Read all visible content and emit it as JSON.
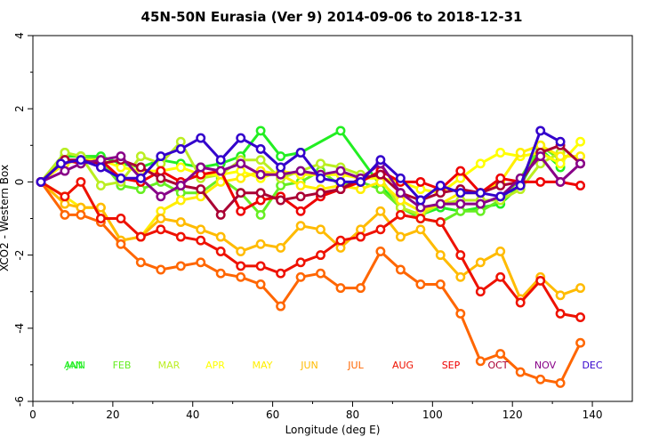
{
  "chart_data": {
    "type": "line",
    "title": "45N-50N Eurasia (Ver 9)   2014-09-06 to 2018-12-31",
    "xlabel": "Longitude (deg E)",
    "ylabel": "XCO2 - Western Box",
    "xlim": [
      0,
      150
    ],
    "ylim": [
      -6,
      4
    ],
    "xticks": [
      0,
      20,
      40,
      60,
      80,
      100,
      120,
      140
    ],
    "yticks": [
      -6,
      -4,
      -2,
      0,
      2,
      4
    ],
    "legend_labels": [
      "ANN",
      "JAN",
      "FEB",
      "MAR",
      "APR",
      "MAY",
      "JUN",
      "JUL",
      "AUG",
      "SEP",
      "OCT",
      "NOV",
      "DEC"
    ],
    "series": [
      {
        "name": "JAN",
        "color": "#22ee22",
        "x": [
          2,
          8,
          12,
          17,
          22,
          27,
          32,
          37,
          42,
          47,
          52,
          57,
          62,
          67,
          77,
          87,
          92,
          97,
          102,
          107,
          112,
          117,
          122,
          127,
          132
        ],
        "y": [
          0,
          0.7,
          0.7,
          0.7,
          0.5,
          0.4,
          0.6,
          0.5,
          0.4,
          0.5,
          0.7,
          1.4,
          0.7,
          0.8,
          1.4,
          -0.1,
          -0.7,
          -0.9,
          -0.7,
          -0.8,
          -0.7,
          -0.6,
          -0.1,
          0.9,
          0.4
        ]
      },
      {
        "name": "FEB",
        "color": "#66ee22",
        "x": [
          2,
          8,
          12,
          17,
          22,
          27,
          32,
          37,
          42,
          47,
          52,
          57,
          62,
          67,
          72,
          77,
          82,
          87,
          92,
          97,
          102,
          107,
          112,
          117,
          122,
          127,
          132
        ],
        "y": [
          0,
          0.8,
          0.7,
          0.6,
          -0.1,
          -0.2,
          0.0,
          -0.3,
          -0.3,
          0.1,
          -0.3,
          -0.9,
          -0.1,
          0.0,
          0.3,
          -0.1,
          0.0,
          -0.2,
          -0.7,
          -1.0,
          -1.1,
          -0.8,
          -0.8,
          -0.5,
          0.1,
          1.0,
          0.6
        ]
      },
      {
        "name": "MAR",
        "color": "#bbee22",
        "x": [
          2,
          8,
          12,
          17,
          22,
          27,
          32,
          37,
          42,
          47,
          52,
          57,
          62,
          67,
          72,
          77,
          82,
          87,
          92,
          97,
          102,
          107,
          112,
          117,
          122,
          127,
          132
        ],
        "y": [
          0,
          0.8,
          0.7,
          -0.1,
          0.0,
          0.7,
          0.5,
          1.1,
          0.1,
          0.2,
          0.6,
          0.6,
          0.1,
          0.3,
          0.5,
          0.4,
          0.2,
          0.1,
          -0.7,
          -0.9,
          -0.6,
          -0.5,
          -0.5,
          -0.5,
          -0.2,
          0.5,
          0.8
        ]
      },
      {
        "name": "APR",
        "color": "#ffff00",
        "x": [
          2,
          8,
          12,
          17,
          22,
          27,
          32,
          37,
          42,
          47,
          52,
          57,
          62,
          67,
          72,
          77,
          82,
          87,
          92,
          97,
          102,
          107,
          112,
          117,
          122,
          127,
          132,
          137
        ],
        "y": [
          0,
          0.5,
          0.6,
          0.6,
          0.4,
          0.3,
          0.3,
          0.4,
          0.2,
          0.2,
          0.3,
          0.1,
          0.3,
          0.2,
          0.2,
          0.2,
          0.1,
          0.1,
          0.0,
          -0.2,
          -0.3,
          0.1,
          0.5,
          0.8,
          0.7,
          0.8,
          0.5,
          1.1
        ]
      },
      {
        "name": "MAY",
        "color": "#ffee00",
        "x": [
          2,
          8,
          12,
          17,
          22,
          27,
          32,
          37,
          42,
          47,
          52,
          57,
          62,
          67,
          72,
          77,
          82,
          87,
          92,
          97,
          102,
          107,
          112,
          117,
          122,
          127,
          132,
          137
        ],
        "y": [
          0,
          -0.4,
          -0.7,
          -0.7,
          -1.6,
          -1.5,
          -0.8,
          -0.5,
          -0.4,
          0.0,
          0.1,
          0.3,
          0.2,
          -0.1,
          -0.2,
          -0.1,
          -0.2,
          0.0,
          -0.5,
          -0.8,
          -0.6,
          -0.3,
          -0.3,
          0.0,
          0.8,
          1.0,
          0.7,
          0.7
        ]
      },
      {
        "name": "JUN",
        "color": "#ffbb00",
        "x": [
          2,
          8,
          12,
          17,
          22,
          27,
          32,
          37,
          42,
          47,
          52,
          57,
          62,
          67,
          72,
          77,
          82,
          87,
          92,
          97,
          102,
          107,
          112,
          117,
          122,
          127,
          132,
          137
        ],
        "y": [
          0,
          -0.6,
          -0.7,
          -0.7,
          -1.6,
          -1.5,
          -1.0,
          -1.1,
          -1.3,
          -1.5,
          -1.9,
          -1.7,
          -1.8,
          -1.2,
          -1.3,
          -1.8,
          -1.3,
          -0.8,
          -1.5,
          -1.3,
          -2.0,
          -2.6,
          -2.2,
          -1.9,
          -3.2,
          -2.6,
          -3.1,
          -2.9
        ]
      },
      {
        "name": "JUL",
        "color": "#ff6600",
        "x": [
          2,
          8,
          12,
          17,
          22,
          27,
          32,
          37,
          42,
          47,
          52,
          57,
          62,
          67,
          72,
          77,
          82,
          87,
          92,
          97,
          102,
          107,
          112,
          117,
          122,
          127,
          132,
          137
        ],
        "y": [
          0,
          -0.9,
          -0.9,
          -1.1,
          -1.7,
          -2.2,
          -2.4,
          -2.3,
          -2.2,
          -2.5,
          -2.6,
          -2.8,
          -3.4,
          -2.6,
          -2.5,
          -2.9,
          -2.9,
          -1.9,
          -2.4,
          -2.8,
          -2.8,
          -3.6,
          -4.9,
          -4.7,
          -5.2,
          -5.4,
          -5.5,
          -4.4
        ]
      },
      {
        "name": "AUG",
        "color": "#ee1100",
        "x": [
          2,
          8,
          12,
          17,
          22,
          27,
          32,
          37,
          42,
          47,
          52,
          57,
          62,
          67,
          72,
          77,
          82,
          87,
          92,
          97,
          102,
          107,
          112,
          117,
          122,
          127,
          132,
          137
        ],
        "y": [
          0,
          -0.4,
          0.0,
          -1.0,
          -1.0,
          -1.5,
          -1.3,
          -1.5,
          -1.6,
          -1.9,
          -2.3,
          -2.3,
          -2.5,
          -2.2,
          -2.0,
          -1.6,
          -1.5,
          -1.3,
          -0.9,
          -1.0,
          -1.1,
          -2.0,
          -3.0,
          -2.6,
          -3.3,
          -2.7,
          -3.6,
          -3.7
        ]
      },
      {
        "name": "SEP",
        "color": "#ee0000",
        "x": [
          2,
          8,
          12,
          17,
          22,
          27,
          32,
          37,
          42,
          47,
          52,
          57,
          62,
          67,
          72,
          77,
          82,
          87,
          92,
          97,
          102,
          107,
          112,
          117,
          122,
          127,
          132,
          137
        ],
        "y": [
          0,
          0.6,
          0.5,
          0.6,
          0.1,
          0.0,
          0.3,
          0.0,
          0.2,
          0.3,
          -0.8,
          -0.5,
          -0.4,
          -0.8,
          -0.4,
          -0.2,
          0.0,
          0.3,
          0.0,
          0.0,
          -0.2,
          0.3,
          -0.3,
          0.1,
          0.0,
          0.0,
          0.0,
          -0.1
        ]
      },
      {
        "name": "OCT",
        "color": "#aa0033",
        "x": [
          2,
          8,
          12,
          17,
          22,
          27,
          32,
          37,
          42,
          47,
          52,
          57,
          62,
          67,
          72,
          77,
          82,
          87,
          92,
          97,
          102,
          107,
          112,
          117,
          122,
          127,
          132,
          137
        ],
        "y": [
          0,
          0.6,
          0.6,
          0.5,
          0.6,
          0.4,
          0.1,
          -0.1,
          -0.2,
          -0.9,
          -0.3,
          -0.3,
          -0.5,
          -0.4,
          -0.3,
          -0.2,
          0.1,
          0.2,
          -0.3,
          -0.5,
          -0.3,
          -0.2,
          -0.3,
          -0.1,
          0.0,
          0.8,
          1.0,
          0.5
        ]
      },
      {
        "name": "NOV",
        "color": "#880088",
        "x": [
          2,
          8,
          12,
          17,
          22,
          27,
          32,
          37,
          42,
          47,
          52,
          57,
          62,
          67,
          72,
          77,
          82,
          87,
          92,
          97,
          102,
          107,
          112,
          117,
          122,
          127,
          132,
          137
        ],
        "y": [
          0,
          0.3,
          0.5,
          0.6,
          0.7,
          0.1,
          -0.4,
          -0.1,
          0.4,
          0.3,
          0.5,
          0.2,
          0.2,
          0.3,
          0.2,
          0.3,
          0.1,
          0.5,
          -0.3,
          -0.7,
          -0.6,
          -0.6,
          -0.6,
          -0.4,
          0.1,
          0.7,
          0.0,
          0.5
        ]
      },
      {
        "name": "DEC",
        "color": "#3300cc",
        "x": [
          2,
          7,
          12,
          17,
          22,
          27,
          32,
          37,
          42,
          47,
          52,
          57,
          62,
          67,
          72,
          77,
          82,
          87,
          92,
          97,
          102,
          107,
          112,
          117,
          122,
          127,
          132
        ],
        "y": [
          0,
          0.5,
          0.6,
          0.4,
          0.1,
          0.1,
          0.7,
          0.9,
          1.2,
          0.6,
          1.2,
          0.9,
          0.4,
          0.8,
          0.1,
          0.0,
          0.0,
          0.6,
          0.1,
          -0.5,
          -0.1,
          -0.3,
          -0.3,
          -0.4,
          -0.1,
          1.4,
          1.1
        ]
      }
    ]
  }
}
